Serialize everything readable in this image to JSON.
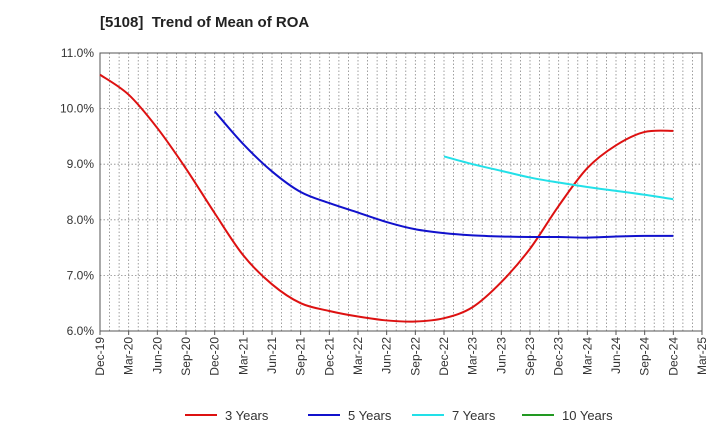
{
  "chart_data": {
    "type": "line",
    "title": "[5108]  Trend of Mean of ROA",
    "xlabel": "",
    "ylabel": "",
    "categories": [
      "Dec-19",
      "Mar-20",
      "Jun-20",
      "Sep-20",
      "Dec-20",
      "Mar-21",
      "Jun-21",
      "Sep-21",
      "Dec-21",
      "Mar-22",
      "Jun-22",
      "Sep-22",
      "Dec-22",
      "Mar-23",
      "Jun-23",
      "Sep-23",
      "Dec-23",
      "Mar-24",
      "Jun-24",
      "Sep-24",
      "Dec-24",
      "Mar-25"
    ],
    "y_ticks": [
      "6.0%",
      "7.0%",
      "8.0%",
      "9.0%",
      "10.0%",
      "11.0%"
    ],
    "ylim": [
      6.0,
      11.0
    ],
    "grid": true,
    "legend_position": "bottom",
    "series": [
      {
        "name": "3 Years",
        "color": "#dd1111",
        "values": [
          10.61,
          10.25,
          9.65,
          8.92,
          8.12,
          7.36,
          6.84,
          6.5,
          6.36,
          6.26,
          6.19,
          6.17,
          6.23,
          6.43,
          6.88,
          7.48,
          8.25,
          8.93,
          9.34,
          9.58,
          9.6,
          null
        ]
      },
      {
        "name": "5 Years",
        "color": "#1111cc",
        "values": [
          null,
          null,
          null,
          null,
          9.95,
          9.36,
          8.87,
          8.5,
          8.3,
          8.13,
          7.96,
          7.83,
          7.76,
          7.72,
          7.7,
          7.69,
          7.69,
          7.68,
          7.7,
          7.71,
          7.71,
          null
        ]
      },
      {
        "name": "7 Years",
        "color": "#22e0e8",
        "values": [
          null,
          null,
          null,
          null,
          null,
          null,
          null,
          null,
          null,
          null,
          null,
          null,
          9.14,
          9.0,
          8.88,
          8.76,
          8.67,
          8.59,
          8.52,
          8.45,
          8.37,
          null
        ]
      },
      {
        "name": "10 Years",
        "color": "#229922",
        "values": [
          null,
          null,
          null,
          null,
          null,
          null,
          null,
          null,
          null,
          null,
          null,
          null,
          null,
          null,
          null,
          null,
          null,
          null,
          null,
          null,
          null,
          null
        ]
      }
    ]
  }
}
